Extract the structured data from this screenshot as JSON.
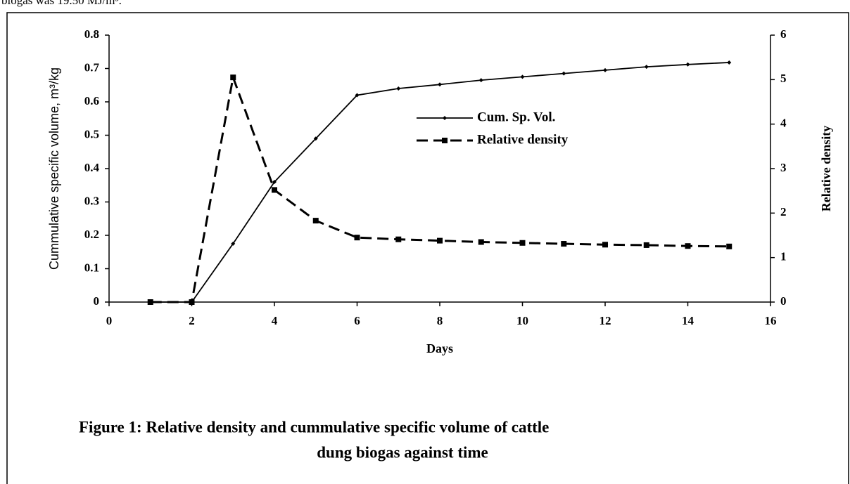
{
  "header_text": "biogas was 19.50 MJ/m³.",
  "chart_data": {
    "type": "line",
    "x": [
      1,
      2,
      3,
      4,
      5,
      6,
      7,
      8,
      9,
      10,
      11,
      12,
      13,
      14,
      15
    ],
    "series": [
      {
        "name": "Cum. Sp. Vol.",
        "color": "#000000",
        "style": "solid",
        "marker": "diamond",
        "values": [
          0,
          0,
          0.175,
          0.36,
          0.49,
          0.62,
          0.64,
          0.652,
          0.665,
          0.675,
          0.685,
          0.695,
          0.705,
          0.712,
          0.718
        ]
      },
      {
        "name": "Relative density",
        "color": "#000000",
        "style": "dashed",
        "marker": "square",
        "axis": "y2",
        "values": [
          0,
          0,
          5.05,
          2.52,
          1.83,
          1.45,
          1.41,
          1.38,
          1.35,
          1.33,
          1.31,
          1.29,
          1.28,
          1.26,
          1.25
        ]
      }
    ],
    "xlabel": "Days",
    "ylabel": "Cummulative specific volume, m³/kg",
    "y2label": "Relative density",
    "xlim": [
      0,
      16
    ],
    "xticks": [
      0,
      2,
      4,
      6,
      8,
      10,
      12,
      14,
      16
    ],
    "ylim": [
      0,
      0.8
    ],
    "yticks": [
      0,
      0.1,
      0.2,
      0.3,
      0.4,
      0.5,
      0.6,
      0.7,
      0.8
    ],
    "y2lim": [
      0,
      6
    ],
    "y2ticks": [
      0,
      1,
      2,
      3,
      4,
      5,
      6
    ],
    "legend": "upper-center"
  },
  "caption": [
    "Figure 1: Relative density  and cummulative specific volume of cattle",
    "dung biogas against time"
  ]
}
